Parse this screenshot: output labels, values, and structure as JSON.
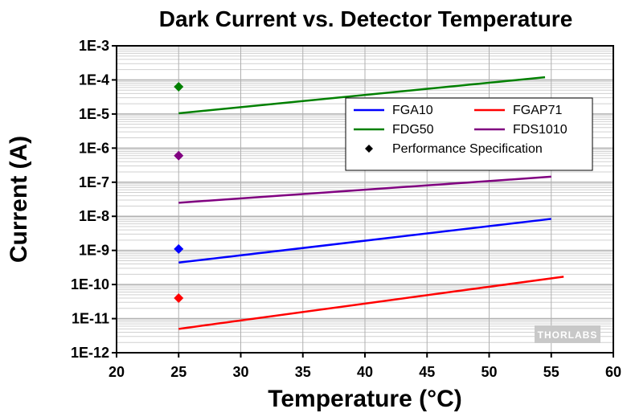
{
  "chart_data": {
    "type": "line",
    "title": "Dark Current vs. Detector Temperature",
    "xlabel": "Temperature (°C)",
    "ylabel": "Current (A)",
    "xlim": [
      20,
      60
    ],
    "x_ticks": [
      "20",
      "25",
      "30",
      "35",
      "40",
      "45",
      "50",
      "55",
      "60"
    ],
    "ylim": [
      1e-12,
      0.001
    ],
    "y_scale": "log",
    "y_ticks": [
      "1E-3",
      "1E-4",
      "1E-5",
      "1E-6",
      "1E-7",
      "1E-8",
      "1E-9",
      "1E-10",
      "1E-11",
      "1E-12"
    ],
    "grid": true,
    "legend_position": "top-right",
    "series": [
      {
        "name": "FGA10",
        "color": "#0000ff",
        "x": [
          25,
          55
        ],
        "y": [
          4.4e-10,
          8.4e-09
        ]
      },
      {
        "name": "FGAP71",
        "color": "#ff0000",
        "x": [
          25,
          56
        ],
        "y": [
          5e-12,
          1.7e-10
        ]
      },
      {
        "name": "FDG50",
        "color": "#008000",
        "x": [
          25,
          54.5
        ],
        "y": [
          1.05e-05,
          0.00012
        ]
      },
      {
        "name": "FDS1010",
        "color": "#800080",
        "x": [
          25,
          55
        ],
        "y": [
          2.5e-08,
          1.45e-07
        ]
      }
    ],
    "performance_spec": {
      "name": "Performance Specification",
      "color": "#000000",
      "points": [
        {
          "x": 25,
          "y": 6.3e-05,
          "color": "#008000"
        },
        {
          "x": 25,
          "y": 6e-07,
          "color": "#800080"
        },
        {
          "x": 25,
          "y": 1.1e-09,
          "color": "#0000ff"
        },
        {
          "x": 25,
          "y": 4e-11,
          "color": "#ff0000"
        }
      ]
    },
    "legend_layout": [
      [
        "FGA10",
        "FGAP71"
      ],
      [
        "FDG50",
        "FDS1010"
      ]
    ],
    "watermark": "THORLABS",
    "colors": {
      "grid": "#d0d0d0",
      "background": "#ffffff",
      "axis": "#000000"
    }
  }
}
